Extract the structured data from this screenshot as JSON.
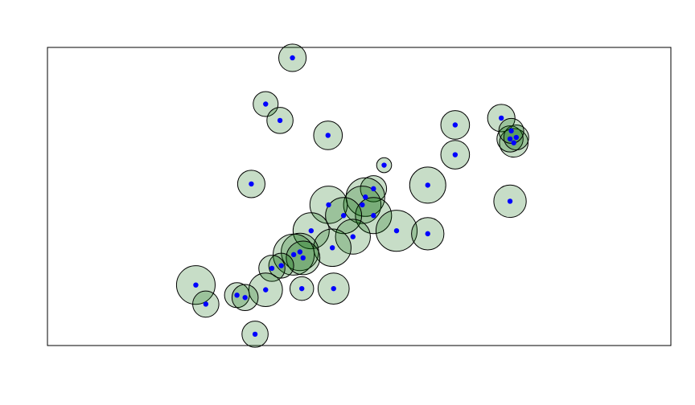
{
  "chart_data": {
    "type": "scatter",
    "title": "",
    "xlabel": "",
    "ylabel": "",
    "xlim": [
      0,
      100
    ],
    "ylim": [
      0,
      100
    ],
    "grid": false,
    "legend": "none",
    "axes_visible": false,
    "colors": {
      "point": "#0000ff",
      "circle_fill": "#006400",
      "circle_stroke": "#000000",
      "frame": "#000000"
    },
    "points": [
      {
        "x": 39.3,
        "y": 96.5,
        "r": 2.2
      },
      {
        "x": 35.0,
        "y": 81.0,
        "r": 2.0
      },
      {
        "x": 37.3,
        "y": 75.5,
        "r": 2.1
      },
      {
        "x": 45.0,
        "y": 70.5,
        "r": 2.3
      },
      {
        "x": 32.7,
        "y": 54.2,
        "r": 2.2
      },
      {
        "x": 54.0,
        "y": 60.5,
        "r": 1.2
      },
      {
        "x": 52.3,
        "y": 52.6,
        "r": 2.1
      },
      {
        "x": 51.0,
        "y": 49.8,
        "r": 3.1
      },
      {
        "x": 50.5,
        "y": 47.2,
        "r": 3.0
      },
      {
        "x": 52.3,
        "y": 43.6,
        "r": 2.9
      },
      {
        "x": 45.1,
        "y": 47.2,
        "r": 3.0
      },
      {
        "x": 47.5,
        "y": 43.6,
        "r": 2.9
      },
      {
        "x": 42.3,
        "y": 38.5,
        "r": 2.9
      },
      {
        "x": 49.0,
        "y": 36.5,
        "r": 2.8
      },
      {
        "x": 56.0,
        "y": 38.5,
        "r": 3.3
      },
      {
        "x": 61.0,
        "y": 37.5,
        "r": 2.6
      },
      {
        "x": 61.0,
        "y": 53.8,
        "r": 2.9
      },
      {
        "x": 45.7,
        "y": 32.8,
        "r": 3.0
      },
      {
        "x": 40.5,
        "y": 31.4,
        "r": 3.0
      },
      {
        "x": 39.5,
        "y": 30.5,
        "r": 3.3
      },
      {
        "x": 41.0,
        "y": 29.4,
        "r": 2.7
      },
      {
        "x": 37.5,
        "y": 26.8,
        "r": 2.0
      },
      {
        "x": 36.0,
        "y": 25.9,
        "r": 2.1
      },
      {
        "x": 35.0,
        "y": 18.7,
        "r": 2.7
      },
      {
        "x": 40.8,
        "y": 19.1,
        "r": 1.9
      },
      {
        "x": 45.9,
        "y": 19.1,
        "r": 2.5
      },
      {
        "x": 23.8,
        "y": 20.3,
        "r": 3.1
      },
      {
        "x": 25.4,
        "y": 13.9,
        "r": 2.1
      },
      {
        "x": 30.4,
        "y": 16.9,
        "r": 2.0
      },
      {
        "x": 31.7,
        "y": 16.1,
        "r": 2.1
      },
      {
        "x": 33.3,
        "y": 3.8,
        "r": 2.1
      },
      {
        "x": 65.4,
        "y": 74.0,
        "r": 2.3
      },
      {
        "x": 65.4,
        "y": 64.0,
        "r": 2.3
      },
      {
        "x": 72.8,
        "y": 76.3,
        "r": 2.2
      },
      {
        "x": 74.8,
        "y": 68.0,
        "r": 2.3
      },
      {
        "x": 74.2,
        "y": 69.3,
        "r": 2.1
      },
      {
        "x": 75.2,
        "y": 69.8,
        "r": 2.0
      },
      {
        "x": 74.4,
        "y": 72.0,
        "r": 2.0
      },
      {
        "x": 74.2,
        "y": 48.4,
        "r": 2.6
      }
    ]
  }
}
